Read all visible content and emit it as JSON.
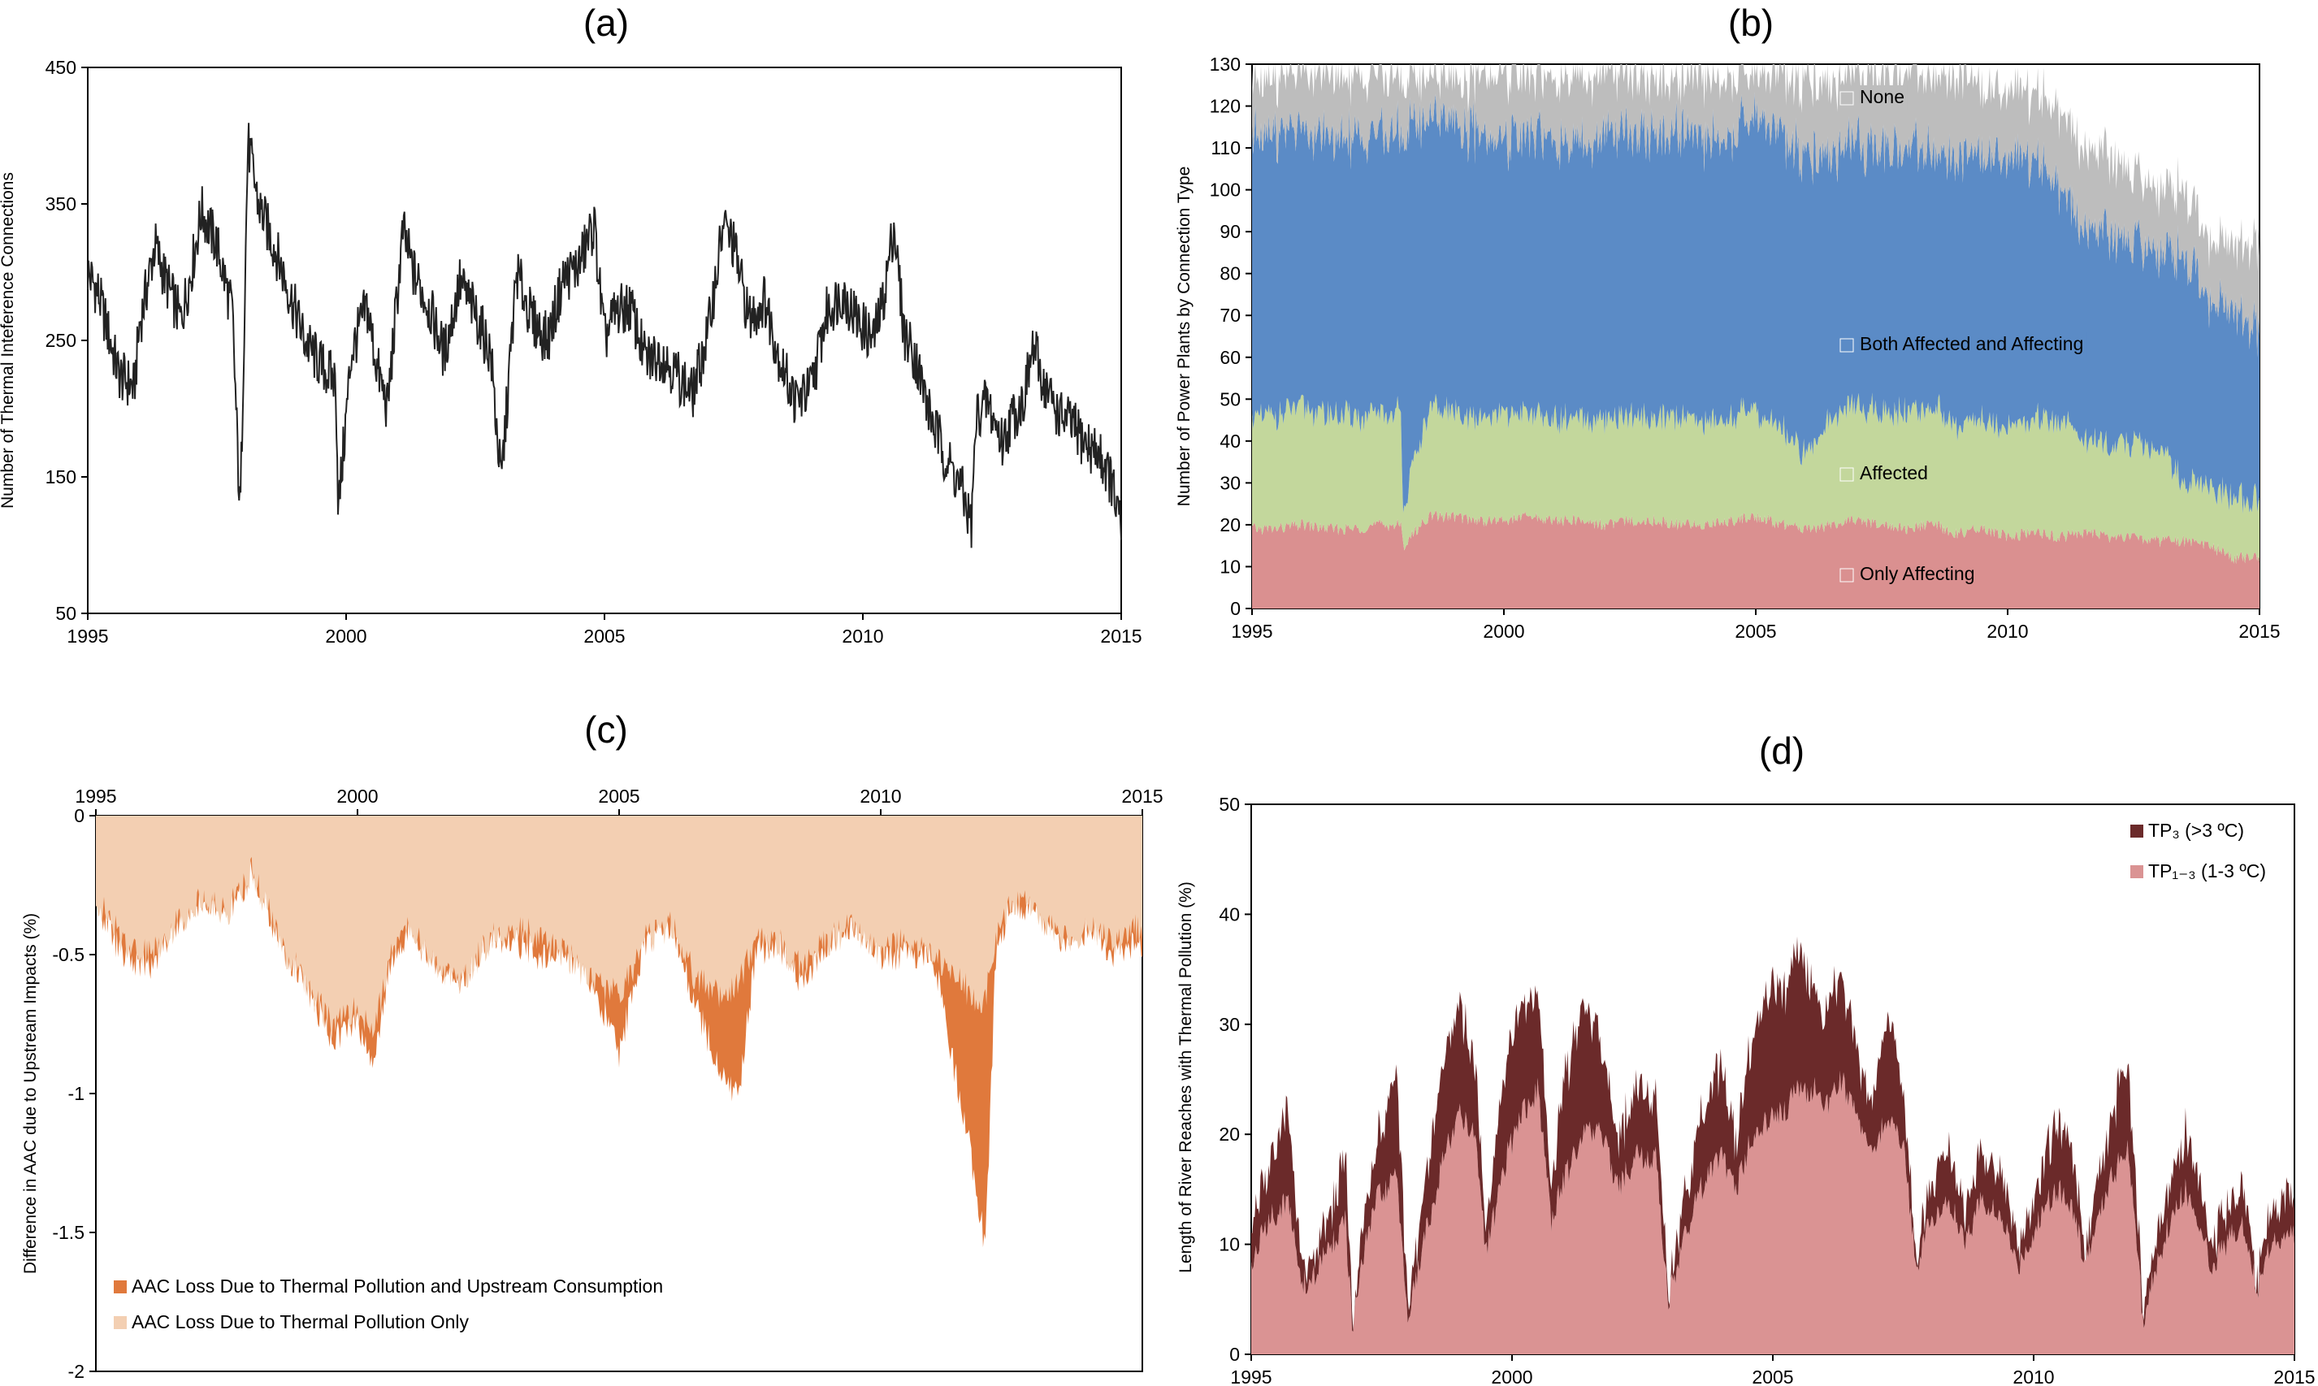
{
  "panels": {
    "a": {
      "label": "(a)"
    },
    "b": {
      "label": "(b)"
    },
    "c": {
      "label": "(c)"
    },
    "d": {
      "label": "(d)"
    }
  },
  "chart_data": [
    {
      "id": "a",
      "type": "line",
      "title": "",
      "xlabel": "",
      "ylabel": "Number of Thermal Inteference Connections",
      "xlim": [
        1995,
        2015
      ],
      "ylim": [
        50,
        450
      ],
      "xticks": [
        "1995",
        "2000",
        "2005",
        "2010",
        "2015"
      ],
      "yticks": [
        "50",
        "150",
        "250",
        "350",
        "450"
      ],
      "grid": false,
      "series": [
        {
          "color": "#222222",
          "x": [
            1995.0,
            1995.2,
            1995.4,
            1995.6,
            1995.9,
            1996.0,
            1996.3,
            1996.5,
            1996.8,
            1997.0,
            1997.2,
            1997.5,
            1997.8,
            1997.95,
            1998.1,
            1998.3,
            1998.6,
            1998.9,
            1999.2,
            1999.5,
            1999.8,
            1999.85,
            2000.1,
            2000.4,
            2000.6,
            2000.8,
            2001.1,
            2001.3,
            2001.6,
            2001.9,
            2002.2,
            2002.5,
            2002.8,
            2003.0,
            2003.3,
            2003.6,
            2003.9,
            2004.2,
            2004.5,
            2004.8,
            2005.0,
            2005.2,
            2005.5,
            2005.8,
            2006.1,
            2006.4,
            2006.7,
            2007.0,
            2007.3,
            2007.5,
            2007.8,
            2008.1,
            2008.4,
            2008.7,
            2009.0,
            2009.3,
            2009.6,
            2009.9,
            2010.2,
            2010.4,
            2010.6,
            2010.8,
            2011.0,
            2011.3,
            2011.6,
            2011.9,
            2012.1,
            2012.2,
            2012.4,
            2012.7,
            2012.9,
            2013.1,
            2013.3,
            2013.5,
            2013.8,
            2014.0,
            2014.3,
            2014.6,
            2014.8,
            2015.0
          ],
          "y": [
            300,
            285,
            255,
            225,
            215,
            260,
            320,
            295,
            265,
            300,
            345,
            320,
            270,
            120,
            395,
            350,
            320,
            285,
            250,
            232,
            220,
            125,
            240,
            275,
            230,
            200,
            330,
            300,
            275,
            240,
            292,
            270,
            240,
            145,
            300,
            265,
            250,
            295,
            305,
            335,
            250,
            270,
            275,
            235,
            240,
            225,
            210,
            255,
            335,
            320,
            265,
            280,
            235,
            205,
            215,
            270,
            285,
            265,
            250,
            280,
            335,
            255,
            240,
            195,
            165,
            142,
            115,
            195,
            205,
            175,
            195,
            205,
            245,
            218,
            195,
            190,
            175,
            165,
            148,
            110
          ]
        }
      ]
    },
    {
      "id": "b",
      "type": "area",
      "title": "",
      "xlabel": "",
      "ylabel": "Number of Power Plants by Connection Type",
      "xlim": [
        1995,
        2015
      ],
      "ylim": [
        0,
        130
      ],
      "xticks": [
        "1995",
        "2000",
        "2005",
        "2010",
        "2015"
      ],
      "yticks": [
        "0",
        "10",
        "20",
        "30",
        "40",
        "50",
        "60",
        "70",
        "80",
        "90",
        "100",
        "110",
        "120",
        "130"
      ],
      "grid": false,
      "x": [
        1995.0,
        1995.5,
        1996.0,
        1996.5,
        1997.0,
        1997.5,
        1997.95,
        1998.0,
        1998.5,
        1999.0,
        1999.5,
        2000.0,
        2000.5,
        2001.0,
        2001.5,
        2002.0,
        2002.5,
        2003.0,
        2003.5,
        2004.0,
        2004.5,
        2005.0,
        2005.5,
        2006.0,
        2006.5,
        2007.0,
        2007.5,
        2008.0,
        2008.5,
        2009.0,
        2009.5,
        2010.0,
        2010.5,
        2011.0,
        2011.5,
        2012.0,
        2012.5,
        2013.0,
        2013.5,
        2014.0,
        2014.5,
        2015.0
      ],
      "series": [
        {
          "name": "Only Affecting",
          "color": "#da9090",
          "values": [
            19,
            19,
            20,
            19,
            19,
            20,
            20,
            15,
            22,
            22,
            21,
            21,
            22,
            21,
            21,
            20,
            21,
            21,
            20,
            20,
            21,
            22,
            20,
            19,
            20,
            21,
            20,
            19,
            20,
            18,
            19,
            17,
            18,
            17,
            18,
            17,
            17,
            16,
            16,
            15,
            12,
            12
          ]
        },
        {
          "name": "Affected",
          "color": "#c3d79c",
          "values": [
            26,
            27,
            28,
            27,
            27,
            26,
            27,
            10,
            25,
            25,
            24,
            25,
            25,
            24,
            24,
            24,
            25,
            25,
            26,
            25,
            25,
            25,
            23,
            18,
            26,
            27,
            27,
            28,
            28,
            26,
            26,
            26,
            27,
            28,
            22,
            22,
            22,
            22,
            14,
            14,
            14,
            14
          ]
        },
        {
          "name": "Both Affected and Affecting",
          "color": "#5b8bc6",
          "values": [
            68,
            68,
            65,
            66,
            66,
            67,
            66,
            89,
            70,
            70,
            68,
            65,
            66,
            67,
            66,
            68,
            67,
            68,
            68,
            67,
            67,
            70,
            70,
            72,
            63,
            62,
            63,
            63,
            62,
            63,
            63,
            65,
            62,
            55,
            50,
            51,
            48,
            47,
            54,
            44,
            45,
            40
          ]
        },
        {
          "name": "None",
          "color": "#bdbdbd",
          "values": [
            14,
            13,
            14,
            15,
            15,
            14,
            14,
            13,
            10,
            10,
            14,
            16,
            14,
            15,
            16,
            15,
            14,
            13,
            13,
            15,
            14,
            10,
            14,
            18,
            17,
            17,
            18,
            18,
            18,
            20,
            16,
            16,
            16,
            18,
            19,
            19,
            16,
            15,
            16,
            14,
            16,
            21
          ]
        }
      ]
    },
    {
      "id": "c",
      "type": "area",
      "title": "",
      "xlabel": "",
      "ylabel": "Difference in AAC due to Upstream Impacts (%)",
      "xlim": [
        1995,
        2015
      ],
      "ylim": [
        -2,
        0
      ],
      "xticks": [
        "1995",
        "2000",
        "2005",
        "2010",
        "2015"
      ],
      "yticks": [
        "-2",
        "-1.5",
        "-1",
        "-0.5",
        "0"
      ],
      "grid": false,
      "x": [
        1995.0,
        1995.5,
        1996.0,
        1996.5,
        1997.0,
        1997.5,
        1998.0,
        1998.5,
        1999.0,
        1999.5,
        2000.0,
        2000.3,
        2000.6,
        2001.0,
        2001.5,
        2002.0,
        2002.5,
        2003.0,
        2003.5,
        2004.0,
        2004.5,
        2005.0,
        2005.5,
        2006.0,
        2006.5,
        2007.0,
        2007.3,
        2007.6,
        2008.0,
        2008.5,
        2009.0,
        2009.5,
        2010.0,
        2010.5,
        2011.0,
        2011.5,
        2011.8,
        2012.0,
        2012.2,
        2012.5,
        2013.0,
        2013.5,
        2014.0,
        2014.5,
        2015.0
      ],
      "series": [
        {
          "name": "AAC Loss Due to Thermal Pollution Only",
          "color": "#f3cfb2",
          "values": [
            -0.3,
            -0.45,
            -0.5,
            -0.4,
            -0.3,
            -0.35,
            -0.2,
            -0.45,
            -0.6,
            -0.75,
            -0.7,
            -0.8,
            -0.5,
            -0.4,
            -0.55,
            -0.6,
            -0.45,
            -0.4,
            -0.45,
            -0.5,
            -0.6,
            -0.65,
            -0.45,
            -0.4,
            -0.6,
            -0.65,
            -0.6,
            -0.45,
            -0.45,
            -0.55,
            -0.45,
            -0.4,
            -0.5,
            -0.45,
            -0.5,
            -0.6,
            -0.65,
            -0.65,
            -0.45,
            -0.3,
            -0.35,
            -0.45,
            -0.4,
            -0.45,
            -0.4
          ]
        },
        {
          "name": "AAC Loss Due to Thermal Pollution and Upstream Consumption",
          "color": "#e0793c",
          "values": [
            -0.3,
            -0.5,
            -0.55,
            -0.4,
            -0.3,
            -0.35,
            -0.2,
            -0.45,
            -0.6,
            -0.8,
            -0.75,
            -0.9,
            -0.55,
            -0.4,
            -0.55,
            -0.6,
            -0.45,
            -0.45,
            -0.5,
            -0.5,
            -0.6,
            -0.85,
            -0.45,
            -0.4,
            -0.7,
            -0.95,
            -1.0,
            -0.5,
            -0.45,
            -0.6,
            -0.45,
            -0.4,
            -0.5,
            -0.5,
            -0.5,
            -1.0,
            -1.3,
            -1.55,
            -0.5,
            -0.3,
            -0.35,
            -0.45,
            -0.4,
            -0.5,
            -0.45
          ]
        }
      ]
    },
    {
      "id": "d",
      "type": "area",
      "title": "",
      "xlabel": "",
      "ylabel": "Length of River Reaches with Thermal Pollution (%)",
      "xlim": [
        1995,
        2015
      ],
      "ylim": [
        0,
        50
      ],
      "xticks": [
        "1995",
        "2000",
        "2005",
        "2010",
        "2015"
      ],
      "yticks": [
        "0",
        "10",
        "20",
        "30",
        "40",
        "50"
      ],
      "grid": false,
      "x": [
        1995.0,
        1995.3,
        1995.7,
        1995.95,
        1996.1,
        1996.4,
        1996.8,
        1996.95,
        1997.1,
        1997.4,
        1997.8,
        1998.0,
        1998.3,
        1998.7,
        1999.0,
        1999.3,
        1999.5,
        1999.9,
        2000.2,
        2000.5,
        2000.75,
        2001.0,
        2001.4,
        2001.7,
        2002.0,
        2002.4,
        2002.75,
        2003.0,
        2003.4,
        2003.7,
        2004.0,
        2004.3,
        2004.6,
        2004.9,
        2005.2,
        2005.5,
        2005.8,
        2006.0,
        2006.3,
        2006.6,
        2006.9,
        2007.2,
        2007.5,
        2007.75,
        2008.0,
        2008.4,
        2008.7,
        2009.0,
        2009.4,
        2009.7,
        2010.0,
        2010.4,
        2010.7,
        2011.0,
        2011.4,
        2011.8,
        2012.1,
        2012.3,
        2012.6,
        2012.9,
        2013.1,
        2013.4,
        2013.7,
        2014.0,
        2014.3,
        2014.6,
        2014.85,
        2015.0
      ],
      "series": [
        {
          "name": "TP₁₋₃ (1-3 ºC)",
          "color": "#da9393",
          "values": [
            8,
            12,
            14,
            7,
            6,
            9,
            12,
            2,
            8,
            14,
            16,
            3,
            10,
            18,
            22,
            20,
            9,
            18,
            22,
            24,
            12,
            16,
            20,
            21,
            15,
            18,
            18,
            5,
            12,
            16,
            18,
            15,
            20,
            21,
            22,
            24,
            24,
            22,
            25,
            22,
            18,
            22,
            19,
            8,
            12,
            14,
            10,
            14,
            12,
            8,
            11,
            15,
            14,
            8,
            15,
            19,
            3,
            7,
            12,
            15,
            13,
            8,
            10,
            12,
            6,
            11,
            10,
            11
          ]
        },
        {
          "name": "TP₃ (>3 ºC)",
          "color": "#6b2a2a",
          "values": [
            3,
            5,
            8,
            2,
            2,
            2,
            6,
            1,
            2,
            5,
            9,
            1,
            4,
            9,
            10,
            6,
            2,
            9,
            10,
            9,
            3,
            9,
            12,
            8,
            4,
            6,
            6,
            1,
            4,
            7,
            8,
            4,
            9,
            12,
            11,
            12,
            10,
            8,
            10,
            6,
            4,
            10,
            5,
            1,
            3,
            5,
            3,
            4,
            4,
            2,
            3,
            6,
            6,
            1,
            5,
            8,
            1,
            2,
            4,
            5,
            5,
            2,
            3,
            4,
            1,
            3,
            4,
            3
          ]
        }
      ]
    }
  ]
}
